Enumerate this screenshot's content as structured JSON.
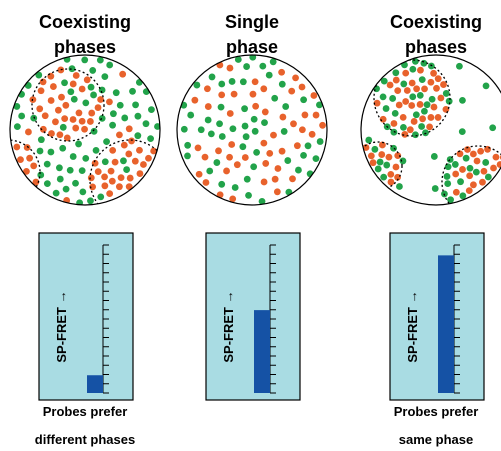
{
  "panels": [
    {
      "title": [
        "Coexisting",
        "phases"
      ],
      "gauge_label": "SP-FRET →",
      "level": 0.12,
      "caption": [
        "Probes prefer",
        "different phases"
      ]
    },
    {
      "title": [
        "Single",
        "phase"
      ],
      "gauge_label": "SP-FRET →",
      "level": 0.56,
      "caption": []
    },
    {
      "title": [
        "Coexisting",
        "phases"
      ],
      "gauge_label": "SP-FRET →",
      "level": 0.93,
      "caption": [
        "Probes prefer",
        "same phase"
      ]
    }
  ]
}
